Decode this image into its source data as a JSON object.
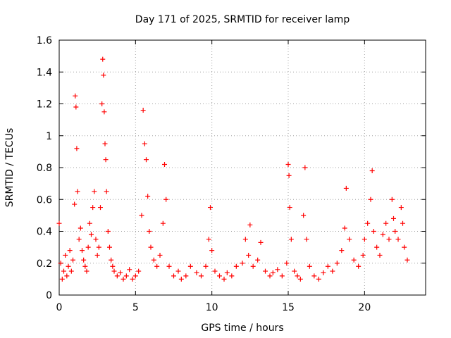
{
  "chart_data": {
    "type": "scatter",
    "title": "Day 171 of 2025, SRMTID for receiver lamp",
    "xlabel": "GPS time / hours",
    "ylabel": "SRMTID / TECUs",
    "xlim": [
      0,
      24
    ],
    "ylim": [
      0,
      1.6
    ],
    "xticks": [
      0,
      5,
      10,
      15,
      20
    ],
    "xtick_labels": [
      "0",
      "5",
      "10",
      "15",
      "20"
    ],
    "yticks": [
      0,
      0.2,
      0.4,
      0.6,
      0.8,
      1,
      1.2,
      1.4,
      1.6
    ],
    "ytick_labels": [
      "0",
      "0.2",
      "0.4",
      "0.6",
      "0.8",
      "1",
      "1.2",
      "1.4",
      "1.6"
    ],
    "grid": true,
    "marker": "+",
    "color": "#ff0000",
    "series": [
      {
        "name": "SRMTID",
        "x": [
          0.0,
          0.1,
          0.2,
          0.3,
          0.4,
          0.5,
          0.6,
          0.7,
          0.8,
          0.9,
          1.0,
          1.05,
          1.1,
          1.15,
          1.2,
          1.3,
          1.4,
          1.5,
          1.6,
          1.7,
          1.8,
          1.9,
          2.0,
          2.1,
          2.2,
          2.3,
          2.4,
          2.5,
          2.6,
          2.7,
          2.8,
          2.85,
          2.9,
          2.95,
          3.0,
          3.05,
          3.1,
          3.2,
          3.3,
          3.4,
          3.5,
          3.6,
          3.8,
          4.0,
          4.2,
          4.4,
          4.6,
          4.8,
          5.0,
          5.2,
          5.4,
          5.5,
          5.6,
          5.7,
          5.8,
          5.9,
          6.0,
          6.2,
          6.4,
          6.6,
          6.8,
          6.9,
          7.0,
          7.2,
          7.5,
          7.8,
          8.0,
          8.3,
          8.6,
          9.0,
          9.3,
          9.6,
          9.8,
          9.9,
          10.0,
          10.2,
          10.5,
          10.8,
          11.0,
          11.3,
          11.6,
          12.0,
          12.2,
          12.4,
          12.5,
          12.7,
          13.0,
          13.2,
          13.5,
          13.8,
          14.0,
          14.3,
          14.6,
          14.9,
          15.0,
          15.05,
          15.1,
          15.2,
          15.4,
          15.6,
          15.8,
          16.0,
          16.1,
          16.2,
          16.4,
          16.7,
          17.0,
          17.3,
          17.6,
          17.9,
          18.2,
          18.5,
          18.7,
          18.8,
          19.0,
          19.3,
          19.6,
          19.9,
          20.0,
          20.2,
          20.4,
          20.5,
          20.6,
          20.8,
          21.0,
          21.2,
          21.4,
          21.6,
          21.8,
          21.9,
          22.0,
          22.2,
          22.4,
          22.5,
          22.6,
          22.8
        ],
        "y": [
          0.45,
          0.2,
          0.1,
          0.15,
          0.25,
          0.12,
          0.18,
          0.28,
          0.15,
          0.22,
          0.57,
          1.25,
          1.18,
          0.92,
          0.65,
          0.35,
          0.42,
          0.28,
          0.22,
          0.18,
          0.15,
          0.3,
          0.45,
          0.38,
          0.55,
          0.65,
          0.35,
          0.25,
          0.3,
          0.55,
          1.2,
          1.48,
          1.38,
          1.15,
          0.95,
          0.85,
          0.65,
          0.4,
          0.3,
          0.22,
          0.18,
          0.15,
          0.12,
          0.14,
          0.1,
          0.12,
          0.16,
          0.1,
          0.12,
          0.15,
          0.5,
          1.16,
          0.95,
          0.85,
          0.62,
          0.4,
          0.3,
          0.22,
          0.18,
          0.25,
          0.45,
          0.82,
          0.6,
          0.18,
          0.12,
          0.15,
          0.1,
          0.12,
          0.18,
          0.14,
          0.12,
          0.18,
          0.35,
          0.55,
          0.28,
          0.15,
          0.12,
          0.1,
          0.14,
          0.12,
          0.18,
          0.2,
          0.35,
          0.25,
          0.44,
          0.18,
          0.22,
          0.33,
          0.15,
          0.12,
          0.14,
          0.16,
          0.12,
          0.2,
          0.82,
          0.75,
          0.55,
          0.35,
          0.15,
          0.12,
          0.1,
          0.5,
          0.8,
          0.35,
          0.18,
          0.12,
          0.1,
          0.14,
          0.18,
          0.15,
          0.2,
          0.28,
          0.42,
          0.67,
          0.35,
          0.22,
          0.18,
          0.25,
          0.35,
          0.45,
          0.6,
          0.78,
          0.4,
          0.3,
          0.25,
          0.38,
          0.45,
          0.35,
          0.6,
          0.48,
          0.4,
          0.35,
          0.55,
          0.45,
          0.3,
          0.22
        ]
      }
    ]
  }
}
